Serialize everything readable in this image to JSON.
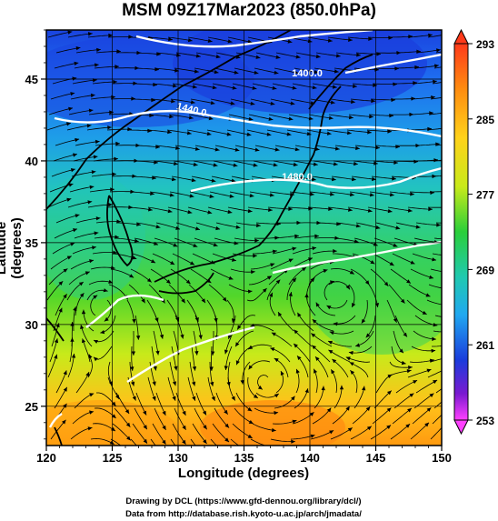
{
  "title": "MSM 09Z17Mar2023 (850.0hPa)",
  "xlabel": "Longitude (degrees)",
  "ylabel": "Latitude  (degrees)",
  "xticks": [
    "120",
    "125",
    "130",
    "135",
    "140",
    "145",
    "150"
  ],
  "yticks": [
    "25",
    "30",
    "35",
    "40",
    "45"
  ],
  "colorbar": {
    "ticks": [
      "293",
      "285",
      "277",
      "269",
      "261",
      "253"
    ],
    "colors": [
      "#ff5a1e",
      "#ff9a10",
      "#ffd21a",
      "#d8ee1a",
      "#7adc1e",
      "#2acf3a",
      "#20c9a0",
      "#20b8e6",
      "#2080f0",
      "#1a3cdc",
      "#3a1ac0",
      "#b81ad8",
      "#ff40ff"
    ]
  },
  "contours": [
    {
      "label": "1400.0"
    },
    {
      "label": "1440.0"
    },
    {
      "label": "1480.0"
    }
  ],
  "credits": [
    "Drawing by DCL (https://www.gfd-dennou.org/library/dcl/)",
    "Data from http://database.rish.kyoto-u.ac.jp/arch/jmadata/"
  ],
  "chart_data": {
    "type": "heatmap",
    "title": "MSM 09Z17Mar2023 (850.0hPa)",
    "xlabel": "Longitude (degrees)",
    "ylabel": "Latitude  (degrees)",
    "xlim": [
      120,
      150
    ],
    "ylim": [
      22.6,
      48
    ],
    "colorbar_range": [
      253,
      293
    ],
    "colorbar_ticks": [
      293,
      285,
      277,
      269,
      261,
      253
    ],
    "height_contours": [
      1400.0,
      1440.0,
      1480.0
    ],
    "overlay": "wind streamlines",
    "grid": true
  }
}
